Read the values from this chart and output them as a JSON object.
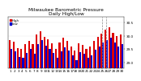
{
  "title": "Milwaukee Barometric Pressure\nDaily High/Low",
  "title_fontsize": 4.2,
  "ylim": [
    28.8,
    30.7
  ],
  "yticks": [
    29.0,
    29.5,
    30.0,
    30.5
  ],
  "ytick_labels": [
    "29.0",
    "29.5",
    "30.0",
    "30.5"
  ],
  "background_color": "#ffffff",
  "bar_width": 0.45,
  "high_color": "#dd0000",
  "low_color": "#0000cc",
  "dashed_line_indices": [
    24,
    25
  ],
  "x_labels": [
    "1",
    "2",
    "3",
    "4",
    "5",
    "6",
    "7",
    "8",
    "9",
    "10",
    "11",
    "12",
    "13",
    "14",
    "15",
    "16",
    "17",
    "18",
    "19",
    "20",
    "21",
    "22",
    "23",
    "24",
    "25",
    "26",
    "27",
    "28",
    "29",
    "30"
  ],
  "highs": [
    29.85,
    29.78,
    29.55,
    29.52,
    29.7,
    29.82,
    29.68,
    30.05,
    30.18,
    29.95,
    29.88,
    29.72,
    29.52,
    29.75,
    29.92,
    29.82,
    29.6,
    29.45,
    29.72,
    29.65,
    29.5,
    29.6,
    29.82,
    29.95,
    30.08,
    30.22,
    30.3,
    30.12,
    29.98,
    30.05
  ],
  "lows": [
    29.5,
    29.42,
    29.2,
    29.18,
    29.35,
    29.5,
    29.32,
    29.7,
    29.85,
    29.62,
    29.52,
    29.35,
    29.18,
    29.42,
    29.58,
    29.45,
    29.28,
    29.1,
    29.38,
    29.32,
    29.18,
    29.28,
    29.48,
    29.6,
    29.75,
    29.85,
    29.92,
    29.75,
    29.6,
    29.68
  ],
  "tick_labelsize": 3.0,
  "legend_high": "High",
  "legend_low": "Low",
  "legend_fontsize": 2.8,
  "grid_color": "#dddddd"
}
